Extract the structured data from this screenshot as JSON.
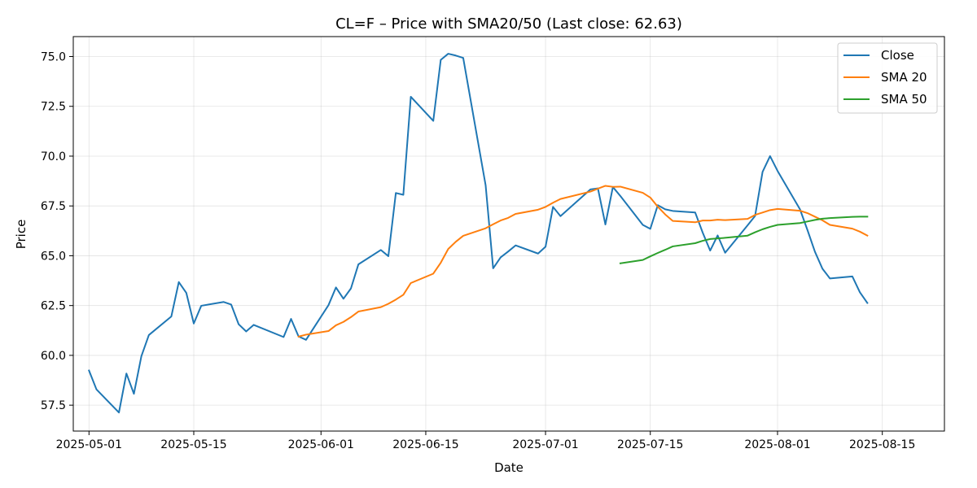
{
  "chart_data": {
    "type": "line",
    "title": "CL=F – Price with SMA20/50 (Last close: 62.63)",
    "xlabel": "Date",
    "ylabel": "Price",
    "xlim_days": [
      -2.1,
      114.3
    ],
    "ylim": [
      56.2,
      76.0
    ],
    "x_ticks": [
      {
        "day": 0,
        "label": "2025-05-01"
      },
      {
        "day": 14,
        "label": "2025-05-15"
      },
      {
        "day": 31,
        "label": "2025-06-01"
      },
      {
        "day": 45,
        "label": "2025-06-15"
      },
      {
        "day": 61,
        "label": "2025-07-01"
      },
      {
        "day": 75,
        "label": "2025-07-15"
      },
      {
        "day": 92,
        "label": "2025-08-01"
      },
      {
        "day": 106,
        "label": "2025-08-15"
      }
    ],
    "y_ticks": [
      57.5,
      60.0,
      62.5,
      65.0,
      67.5,
      70.0,
      72.5,
      75.0
    ],
    "grid": true,
    "legend_position": "top-right",
    "series": [
      {
        "name": "Close",
        "color": "#1f77b4",
        "x": [
          0,
          1,
          4,
          5,
          6,
          7,
          8,
          11,
          12,
          13,
          14,
          15,
          18,
          19,
          20,
          21,
          22,
          26,
          27,
          28,
          29,
          32,
          33,
          34,
          35,
          36,
          39,
          40,
          41,
          42,
          43,
          46,
          47,
          48,
          49,
          50,
          53,
          54,
          55,
          56,
          57,
          60,
          61,
          62,
          63,
          67,
          68,
          69,
          70,
          71,
          74,
          75,
          76,
          77,
          78,
          81,
          82,
          83,
          84,
          85,
          88,
          89,
          90,
          91,
          92,
          95,
          96,
          97,
          98,
          99,
          102,
          103,
          104
        ],
        "values": [
          59.24,
          58.29,
          57.13,
          59.09,
          58.07,
          59.96,
          61.02,
          61.95,
          63.68,
          63.14,
          61.6,
          62.49,
          62.68,
          62.55,
          61.56,
          61.2,
          61.53,
          60.92,
          61.83,
          60.95,
          60.78,
          62.52,
          63.41,
          62.84,
          63.36,
          64.57,
          65.29,
          64.98,
          68.15,
          68.06,
          72.98,
          71.77,
          74.83,
          75.14,
          75.05,
          74.93,
          68.53,
          64.37,
          64.92,
          65.21,
          65.52,
          65.11,
          65.45,
          67.45,
          66.99,
          68.33,
          68.38,
          66.57,
          68.45,
          68.0,
          66.55,
          66.35,
          67.54,
          67.33,
          67.25,
          67.17,
          66.16,
          65.26,
          66.02,
          65.15,
          66.53,
          67.0,
          69.21,
          70.0,
          69.26,
          67.33,
          66.29,
          65.2,
          64.35,
          63.86,
          63.96,
          63.17,
          62.63
        ]
      },
      {
        "name": "SMA 20",
        "color": "#ff7f0e",
        "x": [
          28,
          29,
          32,
          33,
          34,
          35,
          36,
          39,
          40,
          41,
          42,
          43,
          46,
          47,
          48,
          49,
          50,
          53,
          54,
          55,
          56,
          57,
          60,
          61,
          62,
          63,
          67,
          68,
          69,
          70,
          71,
          74,
          75,
          76,
          77,
          78,
          81,
          82,
          83,
          84,
          85,
          88,
          89,
          90,
          91,
          92,
          95,
          96,
          97,
          98,
          99,
          102,
          103,
          104
        ],
        "values": [
          60.94,
          61.04,
          61.22,
          61.51,
          61.68,
          61.92,
          62.2,
          62.42,
          62.59,
          62.8,
          63.04,
          63.63,
          64.1,
          64.65,
          65.34,
          65.7,
          66.0,
          66.38,
          66.58,
          66.77,
          66.9,
          67.1,
          67.31,
          67.45,
          67.66,
          67.85,
          68.22,
          68.37,
          68.51,
          68.46,
          68.47,
          68.16,
          67.92,
          67.46,
          67.07,
          66.75,
          66.68,
          66.77,
          66.77,
          66.81,
          66.79,
          66.85,
          67.05,
          67.17,
          67.29,
          67.35,
          67.26,
          67.14,
          66.96,
          66.78,
          66.55,
          66.36,
          66.21,
          66.01
        ]
      },
      {
        "name": "SMA 50",
        "color": "#2ca02c",
        "x": [
          71,
          74,
          75,
          76,
          77,
          78,
          81,
          82,
          83,
          84,
          85,
          88,
          89,
          90,
          91,
          92,
          95,
          96,
          97,
          98,
          99,
          102,
          103,
          104
        ],
        "values": [
          64.62,
          64.79,
          64.97,
          65.14,
          65.3,
          65.47,
          65.63,
          65.75,
          65.84,
          65.87,
          65.9,
          66.01,
          66.18,
          66.33,
          66.45,
          66.55,
          66.64,
          66.72,
          66.8,
          66.86,
          66.89,
          66.95,
          66.96,
          66.96
        ]
      }
    ]
  }
}
